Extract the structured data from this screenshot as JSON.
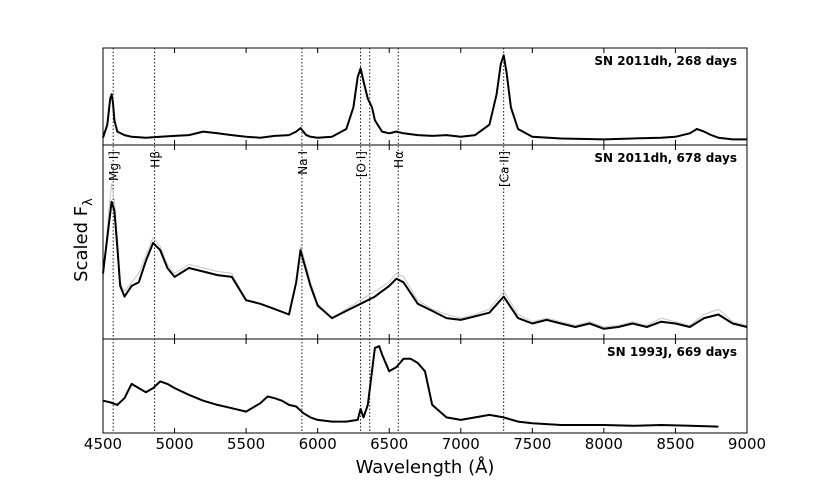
{
  "chart_data": {
    "type": "line",
    "xlabel": "Wavelength (Å)",
    "ylabel": "Scaled F",
    "ylabel_subscript": "λ",
    "xlim": [
      4500,
      9000
    ],
    "xticks": [
      4500,
      5000,
      5500,
      6000,
      6500,
      7000,
      7500,
      8000,
      8500,
      9000
    ],
    "line_ids": [
      {
        "label": "Mg I]",
        "x": 4571
      },
      {
        "label": "Hβ",
        "x": 4861
      },
      {
        "label": "Na I",
        "x": 5890
      },
      {
        "label": "[O I]",
        "x": 6300
      },
      {
        "label": "",
        "x": 6364
      },
      {
        "label": "Hα",
        "x": 6563
      },
      {
        "label": "[Ca II]",
        "x": 7300
      }
    ],
    "panels": [
      {
        "name": "SN 2011dh, 268 days",
        "ylim": [
          0,
          1.05
        ],
        "series": [
          {
            "color": "#000000",
            "x": [
              4500,
              4530,
              4550,
              4560,
              4570,
              4580,
              4600,
              4650,
              4700,
              4800,
              4900,
              5000,
              5100,
              5200,
              5300,
              5400,
              5500,
              5600,
              5700,
              5800,
              5850,
              5880,
              5900,
              5920,
              5950,
              6000,
              6100,
              6200,
              6250,
              6280,
              6300,
              6320,
              6350,
              6380,
              6400,
              6450,
              6500,
              6550,
              6600,
              6700,
              6800,
              6900,
              7000,
              7100,
              7200,
              7250,
              7280,
              7300,
              7320,
              7350,
              7400,
              7500,
              7700,
              8000,
              8200,
              8400,
              8500,
              8600,
              8650,
              8700,
              8750,
              8800,
              8900,
              9000
            ],
            "y": [
              0.05,
              0.2,
              0.5,
              0.55,
              0.45,
              0.25,
              0.12,
              0.08,
              0.06,
              0.05,
              0.06,
              0.07,
              0.08,
              0.12,
              0.1,
              0.08,
              0.06,
              0.05,
              0.07,
              0.08,
              0.12,
              0.16,
              0.12,
              0.08,
              0.06,
              0.05,
              0.06,
              0.15,
              0.4,
              0.75,
              0.85,
              0.7,
              0.5,
              0.4,
              0.25,
              0.12,
              0.1,
              0.12,
              0.1,
              0.08,
              0.07,
              0.08,
              0.06,
              0.08,
              0.2,
              0.55,
              0.9,
              1.0,
              0.8,
              0.4,
              0.15,
              0.06,
              0.04,
              0.03,
              0.04,
              0.05,
              0.06,
              0.1,
              0.15,
              0.12,
              0.08,
              0.05,
              0.03,
              0.03
            ]
          }
        ]
      },
      {
        "name": "SN 2011dh, 678 days",
        "ylim": [
          0,
          1.05
        ],
        "series": [
          {
            "color": "#c8c8c8",
            "x": [
              4500,
              4520,
              4540,
              4560,
              4580,
              4600,
              4620,
              4650,
              4700,
              4750,
              4800,
              4850,
              4900,
              4950,
              5000,
              5100,
              5200,
              5300,
              5400,
              5500,
              5600,
              5700,
              5800,
              5850,
              5880,
              5900,
              5950,
              6000,
              6100,
              6200,
              6300,
              6400,
              6500,
              6550,
              6600,
              6700,
              6800,
              6900,
              7000,
              7100,
              7200,
              7300,
              7400,
              7500,
              7600,
              7700,
              7800,
              7900,
              8000,
              8100,
              8200,
              8300,
              8400,
              8500,
              8600,
              8700,
              8800,
              8900,
              9000
            ],
            "y": [
              0.3,
              0.5,
              0.7,
              0.85,
              0.75,
              0.55,
              0.3,
              0.25,
              0.3,
              0.35,
              0.45,
              0.55,
              0.5,
              0.4,
              0.35,
              0.4,
              0.38,
              0.36,
              0.35,
              0.2,
              0.18,
              0.15,
              0.12,
              0.3,
              0.5,
              0.45,
              0.3,
              0.18,
              0.1,
              0.15,
              0.2,
              0.25,
              0.3,
              0.35,
              0.33,
              0.2,
              0.15,
              0.12,
              0.1,
              0.12,
              0.15,
              0.25,
              0.12,
              0.08,
              0.1,
              0.08,
              0.06,
              0.08,
              0.05,
              0.06,
              0.08,
              0.06,
              0.1,
              0.08,
              0.06,
              0.12,
              0.15,
              0.08,
              0.06
            ]
          },
          {
            "color": "#000000",
            "x": [
              4500,
              4530,
              4560,
              4580,
              4600,
              4620,
              4650,
              4700,
              4750,
              4800,
              4850,
              4900,
              4950,
              5000,
              5100,
              5200,
              5300,
              5400,
              5500,
              5600,
              5700,
              5800,
              5850,
              5880,
              5900,
              5950,
              6000,
              6100,
              6200,
              6300,
              6400,
              6500,
              6550,
              6600,
              6700,
              6800,
              6900,
              7000,
              7100,
              7200,
              7300,
              7400,
              7500,
              7600,
              7700,
              7800,
              7900,
              8000,
              8100,
              8200,
              8300,
              8400,
              8500,
              8600,
              8700,
              8800,
              8900,
              9000
            ],
            "y": [
              0.35,
              0.55,
              0.75,
              0.7,
              0.5,
              0.28,
              0.22,
              0.28,
              0.3,
              0.42,
              0.52,
              0.48,
              0.38,
              0.33,
              0.38,
              0.36,
              0.34,
              0.33,
              0.2,
              0.18,
              0.15,
              0.12,
              0.3,
              0.48,
              0.42,
              0.28,
              0.17,
              0.1,
              0.14,
              0.18,
              0.22,
              0.28,
              0.32,
              0.3,
              0.18,
              0.14,
              0.1,
              0.09,
              0.11,
              0.13,
              0.22,
              0.1,
              0.07,
              0.09,
              0.07,
              0.05,
              0.07,
              0.04,
              0.05,
              0.07,
              0.05,
              0.08,
              0.07,
              0.05,
              0.1,
              0.12,
              0.07,
              0.05
            ]
          }
        ]
      },
      {
        "name": "SN 1993J, 669 days",
        "ylim": [
          0,
          1.05
        ],
        "series": [
          {
            "color": "#000000",
            "x": [
              4500,
              4550,
              4600,
              4650,
              4700,
              4750,
              4800,
              4850,
              4900,
              4950,
              5000,
              5100,
              5200,
              5300,
              5400,
              5500,
              5600,
              5650,
              5700,
              5750,
              5800,
              5850,
              5900,
              5950,
              6000,
              6100,
              6200,
              6280,
              6300,
              6320,
              6350,
              6380,
              6400,
              6430,
              6450,
              6500,
              6550,
              6600,
              6650,
              6700,
              6750,
              6800,
              6900,
              7000,
              7100,
              7200,
              7300,
              7400,
              7500,
              7700,
              8000,
              8200,
              8400,
              8600,
              8800
            ],
            "y": [
              0.35,
              0.33,
              0.3,
              0.38,
              0.55,
              0.5,
              0.45,
              0.5,
              0.58,
              0.55,
              0.5,
              0.42,
              0.35,
              0.3,
              0.26,
              0.22,
              0.32,
              0.4,
              0.38,
              0.35,
              0.3,
              0.28,
              0.2,
              0.15,
              0.12,
              0.1,
              0.1,
              0.12,
              0.25,
              0.15,
              0.3,
              0.7,
              0.98,
              1.0,
              0.9,
              0.7,
              0.75,
              0.85,
              0.85,
              0.8,
              0.7,
              0.3,
              0.15,
              0.12,
              0.15,
              0.18,
              0.15,
              0.1,
              0.08,
              0.06,
              0.06,
              0.05,
              0.06,
              0.05,
              0.04
            ]
          }
        ]
      }
    ]
  }
}
